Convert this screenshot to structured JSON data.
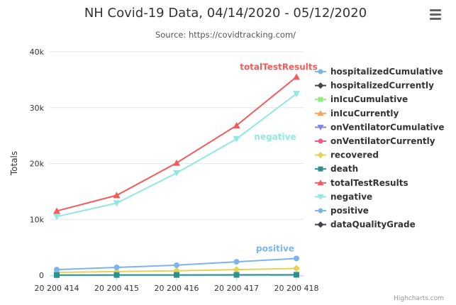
{
  "chart_data": {
    "type": "line",
    "title": "NH Covid-19 Data, 04/14/2020 - 05/12/2020",
    "subtitle": "Source: https://covidtracking.com/",
    "ylabel": "Totals",
    "xlabel": "",
    "categories": [
      "20 200 414",
      "20 200 415",
      "20 200 416",
      "20 200 417",
      "20 200 418"
    ],
    "ylim": [
      0,
      40000
    ],
    "yticks": [
      0,
      10000,
      20000,
      30000,
      40000
    ],
    "ytick_labels": [
      "0",
      "10k",
      "20k",
      "30k",
      "40k"
    ],
    "grid": true,
    "legend_position": "right",
    "series": [
      {
        "name": "hospitalizedCumulative",
        "color": "#7cb5ec",
        "marker": "circle",
        "values": [
          null,
          null,
          null,
          null,
          null
        ]
      },
      {
        "name": "hospitalizedCurrently",
        "color": "#434348",
        "marker": "diamond",
        "values": [
          null,
          null,
          null,
          null,
          null
        ]
      },
      {
        "name": "inIcuCumulative",
        "color": "#90ed7d",
        "marker": "square",
        "values": [
          null,
          null,
          null,
          null,
          null
        ]
      },
      {
        "name": "inIcuCurrently",
        "color": "#f7a35c",
        "marker": "triangle",
        "values": [
          null,
          null,
          null,
          null,
          null
        ]
      },
      {
        "name": "onVentilatorCumulative",
        "color": "#8085e9",
        "marker": "triangle-down",
        "values": [
          null,
          null,
          null,
          null,
          null
        ]
      },
      {
        "name": "onVentilatorCurrently",
        "color": "#f15c80",
        "marker": "circle",
        "values": [
          null,
          null,
          null,
          null,
          null
        ]
      },
      {
        "name": "recovered",
        "color": "#e4d354",
        "marker": "diamond",
        "values": [
          500,
          650,
          800,
          1000,
          1200
        ]
      },
      {
        "name": "death",
        "color": "#2b908f",
        "marker": "square",
        "values": [
          30,
          40,
          50,
          60,
          80
        ]
      },
      {
        "name": "totalTestResults",
        "color": "#f45b5b",
        "marker": "triangle",
        "values": [
          11500,
          14300,
          20100,
          26800,
          35500
        ],
        "label": "totalTestResults"
      },
      {
        "name": "negative",
        "color": "#91e8e1",
        "marker": "triangle-down",
        "values": [
          10500,
          12900,
          18300,
          24400,
          32500
        ],
        "label": "negative"
      },
      {
        "name": "positive",
        "color": "#7cb5ec",
        "marker": "circle",
        "values": [
          1000,
          1400,
          1800,
          2400,
          3000
        ],
        "label": "positive"
      },
      {
        "name": "dataQualityGrade",
        "color": "#434348",
        "marker": "diamond",
        "values": [
          null,
          null,
          null,
          null,
          null
        ]
      }
    ],
    "credits": "Highcharts.com"
  }
}
